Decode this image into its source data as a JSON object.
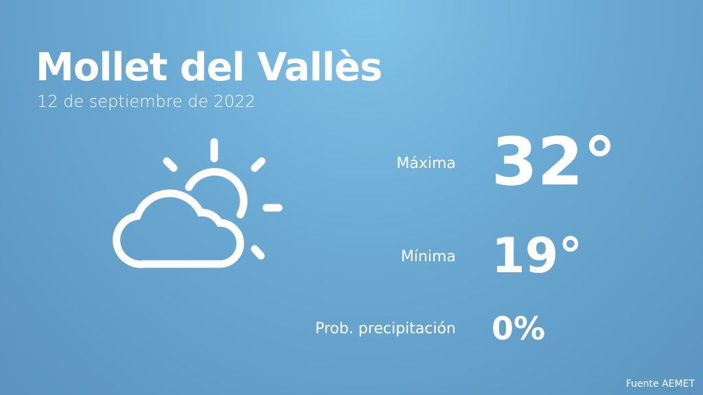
{
  "city": "Mollet del Vallès",
  "date": "12 de septiembre de 2022",
  "icon": "partly-cloudy-icon",
  "rows": [
    {
      "label": "Máxima",
      "value": "32°"
    },
    {
      "label": "Mínima",
      "value": "19°"
    },
    {
      "label": "Prob. precipitación",
      "value": "0%"
    }
  ],
  "source": "Fuente AEMET"
}
